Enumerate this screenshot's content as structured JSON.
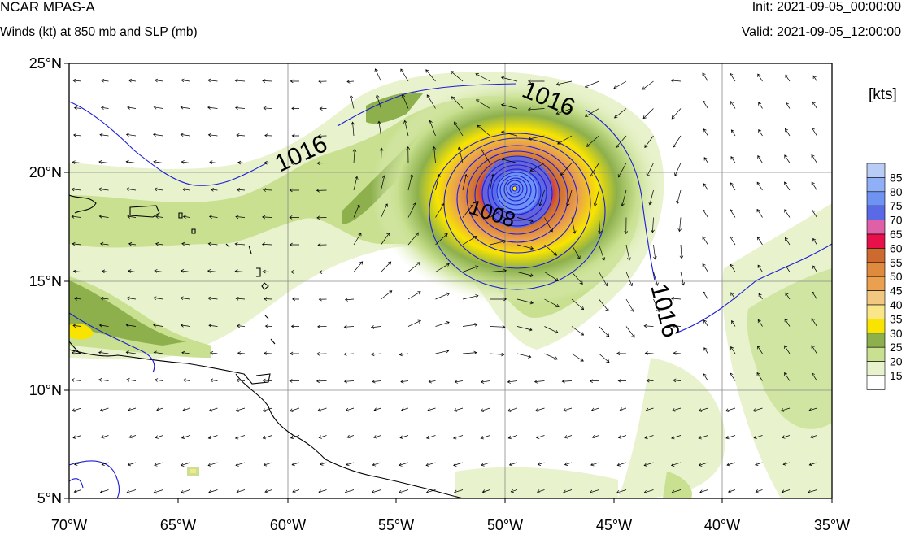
{
  "header": {
    "model": "NCAR MPAS-A",
    "field": "Winds (kt) at 850 mb and SLP (mb)",
    "init": "Init: 2021-09-05_00:00:00",
    "valid": "Valid: 2021-09-05_12:00:00"
  },
  "axes": {
    "lat_labels": [
      "25°N",
      "20°N",
      "15°N",
      "10°N",
      "5°N"
    ],
    "lon_labels": [
      "70°W",
      "65°W",
      "60°W",
      "55°W",
      "50°W",
      "45°W",
      "40°W",
      "35°W"
    ],
    "lat_range": [
      5,
      25
    ],
    "lon_range": [
      -70,
      -35
    ],
    "grid": true
  },
  "colorbar": {
    "title": "[kts]",
    "levels": [
      "85",
      "80",
      "75",
      "70",
      "65",
      "60",
      "55",
      "50",
      "45",
      "40",
      "35",
      "30",
      "25",
      "20",
      "15"
    ],
    "colors": [
      "#b9ccf6",
      "#8fb0f6",
      "#6f93f2",
      "#5a6ae6",
      "#e060a8",
      "#e8104a",
      "#cc6a30",
      "#e08a3e",
      "#eaa04e",
      "#f2c880",
      "#f8e688",
      "#f8e400",
      "#8db04c",
      "#c8e090",
      "#e8f2cc",
      "#ffffff"
    ]
  },
  "contours": {
    "labels": [
      "1016",
      "1016",
      "1016",
      "1008"
    ],
    "color": "#1c1cd8"
  },
  "storm": {
    "center_lon": -49.7,
    "center_lat": 19.3
  }
}
